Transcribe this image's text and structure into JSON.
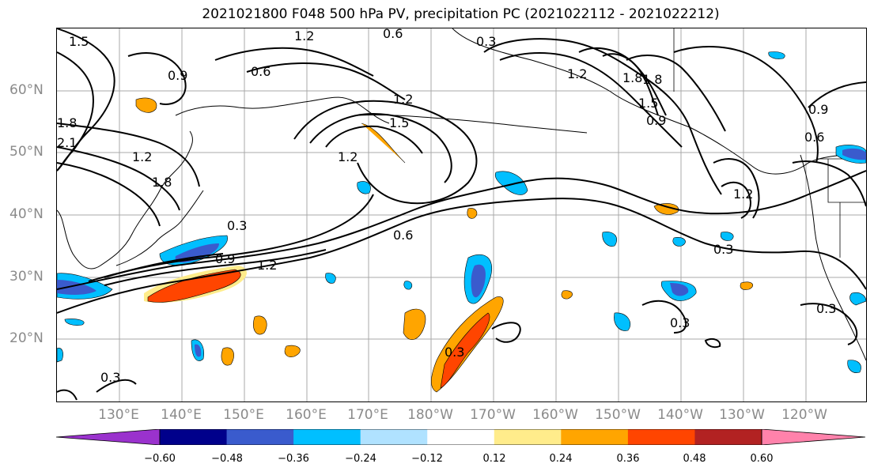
{
  "title": "2021021800 F048 500 hPa PV, precipitation PC (2021022112 - 2021022212)",
  "lat_labels": [
    "60°N",
    "50°N",
    "40°N",
    "30°N",
    "20°N"
  ],
  "lon_labels": [
    "130°E",
    "140°E",
    "150°E",
    "160°E",
    "170°E",
    "180°W",
    "170°W",
    "160°W",
    "150°W",
    "140°W",
    "130°W",
    "120°W"
  ],
  "contour_labels": [
    "1.5",
    "1.2",
    "0.6",
    "0.3",
    "0.9",
    "0.6",
    "1.5",
    "2.1",
    "1.8",
    "1.2",
    "1.8",
    "1.2",
    "1.5",
    "1.8",
    "0.3",
    "0.9",
    "1.2",
    "0.6",
    "1.2",
    "1.2",
    "1.8",
    "0.9",
    "0.6",
    "0.9",
    "1.2",
    "0.3",
    "0.3",
    "0.3",
    "0.3",
    "0.3"
  ],
  "colorbar": {
    "ticks": [
      "−0.60",
      "−0.48",
      "−0.36",
      "−0.24",
      "−0.12",
      "0.12",
      "0.24",
      "0.36",
      "0.48",
      "0.60"
    ],
    "colors": [
      "#9a32cd",
      "#00008b",
      "#3a5bcd",
      "#00bfff",
      "#b0e2ff",
      "#ffffff",
      "#ffec8b",
      "#ffa500",
      "#ff4500",
      "#b22222",
      "#ff82ab"
    ]
  }
}
